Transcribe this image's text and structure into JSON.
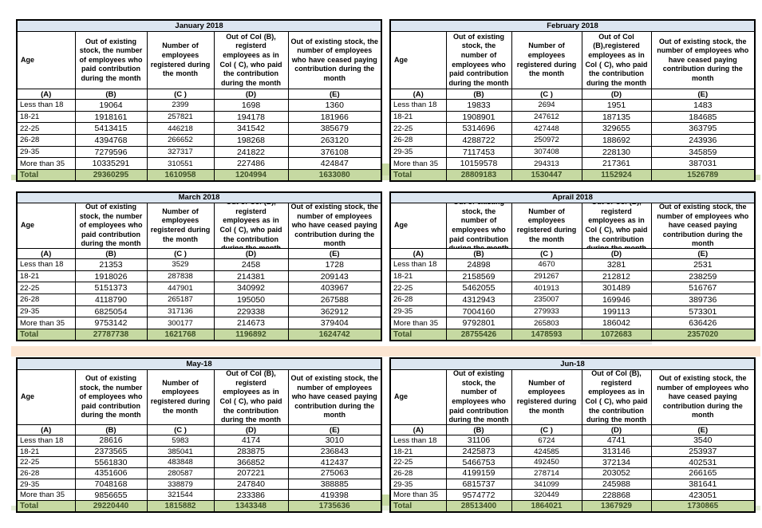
{
  "colors": {
    "title_bar": "#dce6f1",
    "total_row": "#c6d9a2",
    "total_text": "#3f5228",
    "band_peach": "#fbe5d2",
    "band_green": "#d3e2b8",
    "band_green_light": "#e2ecd5",
    "gray_box": "#ebebeb"
  },
  "col_labels": [
    "(A)",
    "(B)",
    "(C )",
    "(D)",
    "(E)"
  ],
  "months": [
    {
      "title": "January 2018",
      "headers": {
        "age": "Age",
        "b": "Out of existing stock, the number of employees who paid contribution during the month",
        "c": "Number of employees registered during the month",
        "d": "Out of Col (B), registerd employees as in Col ( C), who paid the contribution during the month",
        "e": "Out of existing stock, the number of employees who have ceased paying contribution during the month"
      },
      "rows": [
        [
          "Less than 18",
          "19064",
          "2399",
          "1698",
          "1360"
        ],
        [
          "18-21",
          "1918161",
          "257821",
          "194178",
          "181966"
        ],
        [
          "22-25",
          "5413415",
          "446218",
          "341542",
          "385679"
        ],
        [
          "26-28",
          "4394768",
          "266652",
          "198268",
          "263120"
        ],
        [
          "29-35",
          "7279596",
          "327317",
          "241822",
          "376108"
        ],
        [
          "More than 35",
          "10335291",
          "310551",
          "227486",
          "424847"
        ]
      ],
      "total": [
        "Total",
        "29360295",
        "1610958",
        "1204994",
        "1633080"
      ]
    },
    {
      "title": "February 2018",
      "headers": {
        "age": "Age",
        "b": "Out of existing stock, the number of employees who paid contribution during the month",
        "c": "Number of employees registered during the month",
        "d": "Out of Col (B),registered employees as in Col ( C), who paid the contribution during the month",
        "e": "Out of existing stock, the number of employees who have ceased paying contribution during the month"
      },
      "rows": [
        [
          "Less than 18",
          "19833",
          "2694",
          "1951",
          "1483"
        ],
        [
          "18-21",
          "1908901",
          "247612",
          "187135",
          "184685"
        ],
        [
          "22-25",
          "5314696",
          "427448",
          "329655",
          "363795"
        ],
        [
          "26-28",
          "4288722",
          "250972",
          "188692",
          "243936"
        ],
        [
          "29-35",
          "7117453",
          "307408",
          "228130",
          "345859"
        ],
        [
          "More than 35",
          "10159578",
          "294313",
          "217361",
          "387031"
        ]
      ],
      "total": [
        "Total",
        "28809183",
        "1530447",
        "1152924",
        "1526789"
      ]
    },
    {
      "title": "March 2018",
      "headers": {
        "age": "Age",
        "b": "Out of existing stock, the number of employees who paid contribution during the month",
        "c": "Number of employees registered during the month",
        "d": "Out of Col (B), registerd employees as in Col ( C), who paid the contribution during the month",
        "e": "Out of existing stock, the number of employees who have ceased paying contribution during the month"
      },
      "rows": [
        [
          "Less than 18",
          "21353",
          "3529",
          "2458",
          "1728"
        ],
        [
          "18-21",
          "1918026",
          "287838",
          "214381",
          "209143"
        ],
        [
          "22-25",
          "5151373",
          "447901",
          "340992",
          "403967"
        ],
        [
          "26-28",
          "4118790",
          "265187",
          "195050",
          "267588"
        ],
        [
          "29-35",
          "6825054",
          "317136",
          "229338",
          "362912"
        ],
        [
          "More than 35",
          "9753142",
          "300177",
          "214673",
          "379404"
        ]
      ],
      "total": [
        "Total",
        "27787738",
        "1621768",
        "1196892",
        "1624742"
      ]
    },
    {
      "title": "Aprail 2018",
      "headers": {
        "age": "Age",
        "b": "Out of existing stock, the number of employees who paid contribution during the month",
        "c": "Number of employees registered during the month",
        "d": "Out of Col (B), registerd employees as in Col ( C), who paid the contribution during the month",
        "e": "Out of existing stock, the number of employees who have ceased paying contribution during the month"
      },
      "rows": [
        [
          "Less than 18",
          "24898",
          "4670",
          "3281",
          "2531"
        ],
        [
          "18-21",
          "2158569",
          "291267",
          "212812",
          "238259"
        ],
        [
          "22-25",
          "5462055",
          "401913",
          "301489",
          "516767"
        ],
        [
          "26-28",
          "4312943",
          "235007",
          "169946",
          "389736"
        ],
        [
          "29-35",
          "7004160",
          "279933",
          "199113",
          "573301"
        ],
        [
          "More than 35",
          "9792801",
          "265803",
          "186042",
          "636426"
        ]
      ],
      "total": [
        "Total",
        "28755426",
        "1478593",
        "1072683",
        "2357020"
      ]
    },
    {
      "title": "May-18",
      "headers": {
        "age": "Age",
        "b": "Out of existing stock, the number of employees who paid contribution during the month",
        "c": "Number of employees registered during the month",
        "d": "Out of Col (B), registerd employees as in Col ( C), who paid the contribution during the month",
        "e": "Out of existing stock, the number of employees who have ceased paying contribution during the month"
      },
      "rows": [
        [
          "Less than 18",
          "28616",
          "5983",
          "4174",
          "3010"
        ],
        [
          "18-21",
          "2373565",
          "385041",
          "283875",
          "236843"
        ],
        [
          "22-25",
          "5561830",
          "483848",
          "366852",
          "412437"
        ],
        [
          "26-28",
          "4351606",
          "280587",
          "207221",
          "275063"
        ],
        [
          "29-35",
          "7048168",
          "338879",
          "247840",
          "388885"
        ],
        [
          "More than 35",
          "9856655",
          "321544",
          "233386",
          "419398"
        ]
      ],
      "total": [
        "Total",
        "29220440",
        "1815882",
        "1343348",
        "1735636"
      ]
    },
    {
      "title": "Jun-18",
      "headers": {
        "age": "Age",
        "b": "Out of existing stock, the number of employees who paid contribution during the month",
        "c": "Number of employees registered during the month",
        "d": "Out of Col (B), registerd employees as in Col ( C), who paid the contribution during the month",
        "e": "Out of existing stock, the number of employees who have ceased paying contribution during the month"
      },
      "rows": [
        [
          "Less than 18",
          "31106",
          "6724",
          "4741",
          "3540"
        ],
        [
          "18-21",
          "2425873",
          "424585",
          "313146",
          "253937"
        ],
        [
          "22-25",
          "5466753",
          "492450",
          "372134",
          "402531"
        ],
        [
          "26-28",
          "4199159",
          "278714",
          "203052",
          "266165"
        ],
        [
          "29-35",
          "6815737",
          "341099",
          "245988",
          "381641"
        ],
        [
          "More than 35",
          "9574772",
          "320449",
          "228868",
          "423051"
        ]
      ],
      "total": [
        "Total",
        "28513400",
        "1864021",
        "1367929",
        "1730865"
      ]
    }
  ]
}
